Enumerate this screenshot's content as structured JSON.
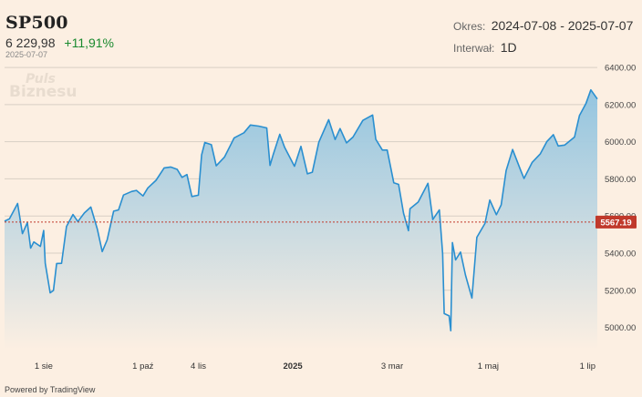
{
  "header": {
    "ticker": "SP500",
    "price": "6 229,98",
    "change": "+11,91%",
    "as_of": "2025-07-07",
    "period_label": "Okres:",
    "period_value": "2024-07-08 - 2025-07-07",
    "interval_label": "Interwał:",
    "interval_value": "1D"
  },
  "watermark": {
    "line1": "Puls",
    "line2": "Biznesu"
  },
  "footer": {
    "powered": "Powered by TradingView"
  },
  "colors": {
    "line": "#2a8fd0",
    "area_top": "#8fc3e0",
    "area_bottom": "#fcefe2",
    "grid": "#d8cfc4",
    "reference": "#c0392b",
    "background": "#fcefe2"
  },
  "chart_data": {
    "type": "area",
    "title": "",
    "xlabel": "",
    "ylabel": "",
    "ylim": [
      4880,
      6420
    ],
    "xlim": [
      "2024-07-08",
      "2025-07-07"
    ],
    "y_ticks": [
      "5000.00",
      "5200.00",
      "5400.00",
      "5600.00",
      "5800.00",
      "6000.00",
      "6200.00",
      "6400.00"
    ],
    "x_ticks": [
      {
        "label": "1 sie",
        "date": "2024-08-01"
      },
      {
        "label": "1 paź",
        "date": "2024-10-01"
      },
      {
        "label": "4 lis",
        "date": "2024-11-04"
      },
      {
        "label": "2025",
        "date": "2025-01-01"
      },
      {
        "label": "3 mar",
        "date": "2025-03-03"
      },
      {
        "label": "1 maj",
        "date": "2025-05-01"
      },
      {
        "label": "1 lip",
        "date": "2025-07-01"
      }
    ],
    "grid": true,
    "reference_line": {
      "value": 5567.19,
      "label": "5567.19"
    },
    "series": [
      {
        "x": [
          "2024-07-08",
          "2024-07-11",
          "2024-07-16",
          "2024-07-19",
          "2024-07-22",
          "2024-07-24",
          "2024-07-26",
          "2024-07-30",
          "2024-08-01",
          "2024-08-02",
          "2024-08-05",
          "2024-08-07",
          "2024-08-09",
          "2024-08-12",
          "2024-08-15",
          "2024-08-19",
          "2024-08-22",
          "2024-08-26",
          "2024-08-30",
          "2024-09-03",
          "2024-09-06",
          "2024-09-09",
          "2024-09-13",
          "2024-09-16",
          "2024-09-19",
          "2024-09-24",
          "2024-09-27",
          "2024-10-01",
          "2024-10-04",
          "2024-10-09",
          "2024-10-14",
          "2024-10-18",
          "2024-10-22",
          "2024-10-25",
          "2024-10-28",
          "2024-10-31",
          "2024-11-04",
          "2024-11-06",
          "2024-11-08",
          "2024-11-12",
          "2024-11-15",
          "2024-11-20",
          "2024-11-26",
          "2024-12-02",
          "2024-12-06",
          "2024-12-11",
          "2024-12-16",
          "2024-12-18",
          "2024-12-20",
          "2024-12-24",
          "2024-12-27",
          "2025-01-02",
          "2025-01-06",
          "2025-01-10",
          "2025-01-13",
          "2025-01-17",
          "2025-01-23",
          "2025-01-27",
          "2025-01-30",
          "2025-02-03",
          "2025-02-07",
          "2025-02-13",
          "2025-02-19",
          "2025-02-21",
          "2025-02-25",
          "2025-02-28",
          "2025-03-04",
          "2025-03-07",
          "2025-03-10",
          "2025-03-13",
          "2025-03-14",
          "2025-03-19",
          "2025-03-25",
          "2025-03-28",
          "2025-04-01",
          "2025-04-03",
          "2025-04-04",
          "2025-04-07",
          "2025-04-08",
          "2025-04-09",
          "2025-04-11",
          "2025-04-14",
          "2025-04-17",
          "2025-04-21",
          "2025-04-24",
          "2025-04-29",
          "2025-05-02",
          "2025-05-06",
          "2025-05-09",
          "2025-05-12",
          "2025-05-16",
          "2025-05-21",
          "2025-05-23",
          "2025-05-28",
          "2025-06-02",
          "2025-06-06",
          "2025-06-10",
          "2025-06-13",
          "2025-06-17",
          "2025-06-23",
          "2025-06-26",
          "2025-06-30",
          "2025-07-03",
          "2025-07-07"
        ],
        "values": [
          5572,
          5585,
          5667,
          5505,
          5564,
          5427,
          5460,
          5436,
          5522,
          5346,
          5186,
          5199,
          5344,
          5345,
          5543,
          5608,
          5570,
          5616,
          5648,
          5528,
          5408,
          5471,
          5626,
          5633,
          5713,
          5732,
          5738,
          5708,
          5751,
          5792,
          5859,
          5864,
          5851,
          5808,
          5823,
          5705,
          5712,
          5929,
          5996,
          5984,
          5870,
          5917,
          6021,
          6048,
          6090,
          6084,
          6074,
          5872,
          5931,
          6040,
          5970,
          5868,
          5975,
          5827,
          5836,
          5997,
          6119,
          6012,
          6071,
          5994,
          6025,
          6115,
          6144,
          6013,
          5955,
          5955,
          5779,
          5770,
          5615,
          5521,
          5639,
          5675,
          5776,
          5581,
          5633,
          5396,
          5074,
          5062,
          4982,
          5457,
          5363,
          5406,
          5282,
          5158,
          5485,
          5560,
          5686,
          5607,
          5660,
          5844,
          5958,
          5844,
          5802,
          5889,
          5935,
          6000,
          6038,
          5977,
          5982,
          6025,
          6141,
          6205,
          6279,
          6229.98
        ]
      }
    ]
  }
}
